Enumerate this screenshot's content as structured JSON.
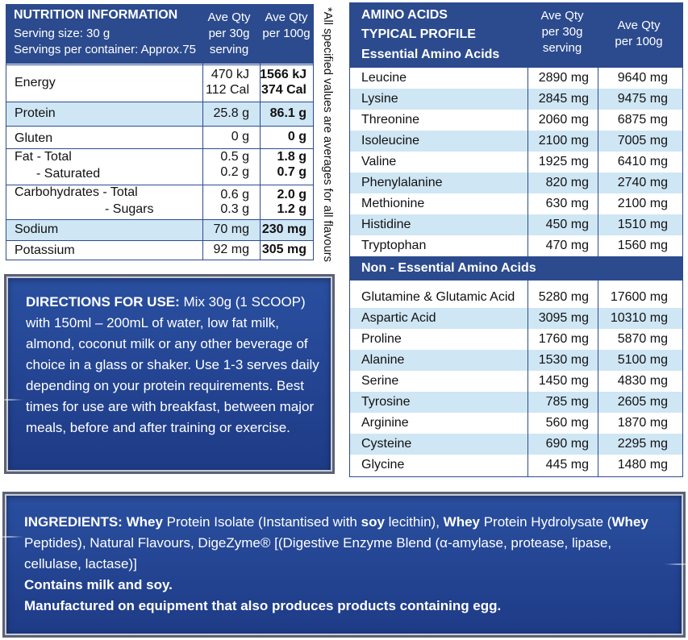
{
  "nutrition": {
    "title": "NUTRITION INFORMATION",
    "serving_size": "Serving size:  30 g",
    "servings_per_container": "Servings per container: Approx.75",
    "col1_header": [
      "Ave Qty",
      "per 30g",
      "serving"
    ],
    "col2_header": [
      "Ave Qty",
      "per 100g"
    ],
    "rows": [
      {
        "label": "Energy",
        "v1": [
          "470 kJ",
          "112 Cal"
        ],
        "v2": [
          "1566 kJ",
          "374 Cal"
        ]
      },
      {
        "label": "Protein",
        "v1": [
          "25.8 g"
        ],
        "v2": [
          "86.1 g"
        ]
      },
      {
        "label": "Gluten",
        "v1": [
          "0 g"
        ],
        "v2": [
          "0 g"
        ]
      },
      {
        "label": "Fat  -  Total",
        "label2": "- Saturated",
        "v1": [
          "0.5 g",
          "0.2 g"
        ],
        "v2": [
          "1.8 g",
          "0.7 g"
        ]
      },
      {
        "label": "Carbohydrates  - Total",
        "label2": "- Sugars",
        "v1": [
          "0.6 g",
          "0.3 g"
        ],
        "v2": [
          "2.0 g",
          "1.2 g"
        ]
      },
      {
        "label": "Sodium",
        "v1": [
          "70 mg"
        ],
        "v2": [
          "230 mg"
        ]
      },
      {
        "label": "Potassium",
        "v1": [
          "92 mg"
        ],
        "v2": [
          "305 mg"
        ]
      }
    ]
  },
  "side_note": "*All specified values are averages for all flavours",
  "amino": {
    "header_lines": [
      "AMINO ACIDS",
      "TYPICAL PROFILE",
      "Essential Amino Acids"
    ],
    "col1_header": [
      "Ave Qty",
      "per 30g",
      "serving"
    ],
    "col2_header": [
      "Ave Qty",
      "per 100g"
    ],
    "essential": [
      {
        "name": "Leucine",
        "v1": "2890 mg",
        "v2": "9640 mg"
      },
      {
        "name": "Lysine",
        "v1": "2845 mg",
        "v2": "9475 mg"
      },
      {
        "name": "Threonine",
        "v1": "2060 mg",
        "v2": "6875 mg"
      },
      {
        "name": "Isoleucine",
        "v1": "2100 mg",
        "v2": "7005 mg"
      },
      {
        "name": "Valine",
        "v1": "1925 mg",
        "v2": "6410 mg"
      },
      {
        "name": "Phenylalanine",
        "v1": "820 mg",
        "v2": "2740 mg"
      },
      {
        "name": "Methionine",
        "v1": "630 mg",
        "v2": "2100 mg"
      },
      {
        "name": "Histidine",
        "v1": "450 mg",
        "v2": "1510 mg"
      },
      {
        "name": "Tryptophan",
        "v1": "470 mg",
        "v2": "1560 mg"
      }
    ],
    "non_essential_title": "Non - Essential Amino Acids",
    "non_essential": [
      {
        "name": "Glutamine & Glutamic Acid",
        "v1": "5280 mg",
        "v2": "17600 mg"
      },
      {
        "name": "Aspartic Acid",
        "v1": "3095 mg",
        "v2": "10310 mg"
      },
      {
        "name": "Proline",
        "v1": "1760 mg",
        "v2": "5870 mg"
      },
      {
        "name": "Alanine",
        "v1": "1530 mg",
        "v2": "5100 mg"
      },
      {
        "name": "Serine",
        "v1": "1450 mg",
        "v2": "4830 mg"
      },
      {
        "name": "Tyrosine",
        "v1": "785 mg",
        "v2": "2605 mg"
      },
      {
        "name": "Arginine",
        "v1": "560 mg",
        "v2": "1870 mg"
      },
      {
        "name": "Cysteine",
        "v1": "690 mg",
        "v2": "2295 mg"
      },
      {
        "name": "Glycine",
        "v1": "445 mg",
        "v2": "1480 mg"
      }
    ]
  },
  "directions": {
    "label": "DIRECTIONS FOR USE:",
    "text": " Mix 30g (1 SCOOP) with 150ml – 200mL of water, low fat milk, almond, coconut milk or any other beverage of choice in a glass or shaker.  Use 1-3 serves daily depending on your protein requirements.  Best times for use are with breakfast, between major meals, before and after training or exercise."
  },
  "ingredients": {
    "label": "INGREDIENTS:",
    "w1": "Whey",
    "t1": " Protein Isolate (Instantised with ",
    "soy": "soy",
    "t2": " lecithin), ",
    "w2": "Whey",
    "t3": " Protein Hydrolysate (",
    "w3": "Whey",
    "t4": " Peptides), Natural Flavours, DigeZyme® [(Digestive Enzyme Blend (α-amylase, protease, lipase, cellulase, lactase)]",
    "allergen1": "Contains milk and soy.",
    "allergen2": "Manufactured on equipment that also produces products containing egg."
  },
  "colors": {
    "navy": "#2c4b8e",
    "light_blue": "#cfe6f4",
    "box_blue": "#234494"
  }
}
